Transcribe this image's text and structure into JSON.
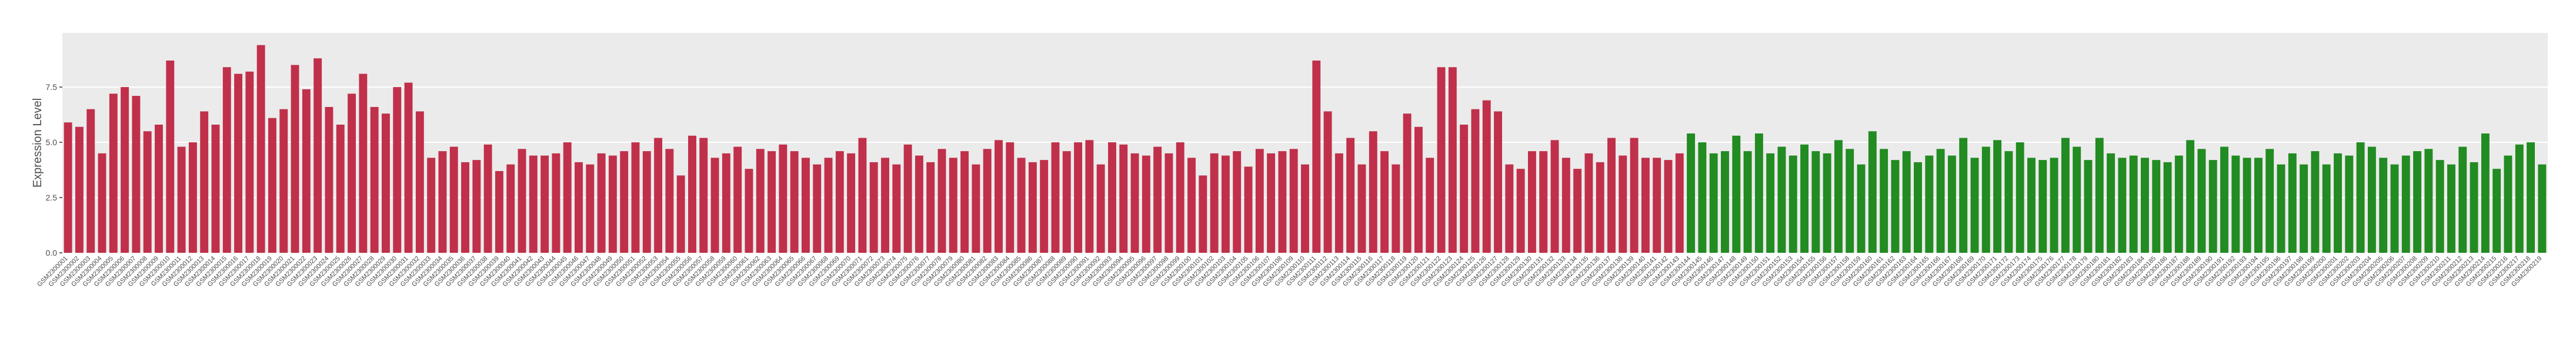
{
  "chart_data": {
    "type": "bar",
    "y_label": "Expression Level",
    "categories": [
      "GSM2300001",
      "GSM2300002",
      "GSM2300003",
      "GSM2300004",
      "GSM2300005",
      "GSM2300006",
      "GSM2300007",
      "GSM2300008",
      "GSM2300009",
      "GSM2300010",
      "GSM2300011",
      "GSM2300012",
      "GSM2300013",
      "GSM2300014",
      "GSM2300015",
      "GSM2300016",
      "GSM2300017",
      "GSM2300018",
      "GSM2300019",
      "GSM2300020",
      "GSM2300021",
      "GSM2300022",
      "GSM2300023",
      "GSM2300024",
      "GSM2300025",
      "GSM2300026",
      "GSM2300027",
      "GSM2300028",
      "GSM2300029",
      "GSM2300030",
      "GSM2300031",
      "GSM2300032",
      "GSM2300033",
      "GSM2300034",
      "GSM2300035",
      "GSM2300036",
      "GSM2300037",
      "GSM2300038",
      "GSM2300039",
      "GSM2300040",
      "GSM2300041",
      "GSM2300042",
      "GSM2300043",
      "GSM2300044",
      "GSM2300045",
      "GSM2300046",
      "GSM2300047",
      "GSM2300048",
      "GSM2300049",
      "GSM2300050",
      "GSM2300051",
      "GSM2300052",
      "GSM2300053",
      "GSM2300054",
      "GSM2300055",
      "GSM2300056",
      "GSM2300057",
      "GSM2300058",
      "GSM2300059",
      "GSM2300060",
      "GSM2300061",
      "GSM2300062",
      "GSM2300063",
      "GSM2300064",
      "GSM2300065",
      "GSM2300066",
      "GSM2300067",
      "GSM2300068",
      "GSM2300069",
      "GSM2300070",
      "GSM2300071",
      "GSM2300072",
      "GSM2300073",
      "GSM2300074",
      "GSM2300075",
      "GSM2300076",
      "GSM2300077",
      "GSM2300078",
      "GSM2300079",
      "GSM2300080",
      "GSM2300081",
      "GSM2300082",
      "GSM2300083",
      "GSM2300084",
      "GSM2300085",
      "GSM2300086",
      "GSM2300087",
      "GSM2300088",
      "GSM2300089",
      "GSM2300090",
      "GSM2300091",
      "GSM2300092",
      "GSM2300093",
      "GSM2300094",
      "GSM2300095",
      "GSM2300096",
      "GSM2300097",
      "GSM2300098",
      "GSM2300099",
      "GSM2300100",
      "GSM2300101",
      "GSM2300102",
      "GSM2300103",
      "GSM2300104",
      "GSM2300105",
      "GSM2300106",
      "GSM2300107",
      "GSM2300108",
      "GSM2300109",
      "GSM2300110",
      "GSM2300111",
      "GSM2300112",
      "GSM2300113",
      "GSM2300114",
      "GSM2300115",
      "GSM2300116",
      "GSM2300117",
      "GSM2300118",
      "GSM2300119",
      "GSM2300120",
      "GSM2300121",
      "GSM2300122",
      "GSM2300123",
      "GSM2300124",
      "GSM2300125",
      "GSM2300126",
      "GSM2300127",
      "GSM2300128",
      "GSM2300129",
      "GSM2300130",
      "GSM2300131",
      "GSM2300132",
      "GSM2300133",
      "GSM2300134",
      "GSM2300135",
      "GSM2300136",
      "GSM2300137",
      "GSM2300138",
      "GSM2300139",
      "GSM2300140",
      "GSM2300141",
      "GSM2300142",
      "GSM2300143",
      "GSM2300144",
      "GSM2300145",
      "GSM2300146",
      "GSM2300147",
      "GSM2300148",
      "GSM2300149",
      "GSM2300150",
      "GSM2300151",
      "GSM2300152",
      "GSM2300153",
      "GSM2300154",
      "GSM2300155",
      "GSM2300156",
      "GSM2300157",
      "GSM2300158",
      "GSM2300159",
      "GSM2300160",
      "GSM2300161",
      "GSM2300162",
      "GSM2300163",
      "GSM2300164",
      "GSM2300165",
      "GSM2300166",
      "GSM2300167",
      "GSM2300168",
      "GSM2300169",
      "GSM2300170",
      "GSM2300171",
      "GSM2300172",
      "GSM2300173",
      "GSM2300174",
      "GSM2300175",
      "GSM2300176",
      "GSM2300177",
      "GSM2300178",
      "GSM2300179",
      "GSM2300180",
      "GSM2300181",
      "GSM2300182",
      "GSM2300183",
      "GSM2300184",
      "GSM2300185",
      "GSM2300186",
      "GSM2300187",
      "GSM2300188",
      "GSM2300189",
      "GSM2300190",
      "GSM2300191",
      "GSM2300192",
      "GSM2300193",
      "GSM2300194",
      "GSM2300195",
      "GSM2300196",
      "GSM2300197",
      "GSM2300198",
      "GSM2300199",
      "GSM2300200",
      "GSM2300201",
      "GSM2300202",
      "GSM2300203",
      "GSM2300204",
      "GSM2300205",
      "GSM2300206",
      "GSM2300207",
      "GSM2300208",
      "GSM2300209",
      "GSM2300210",
      "GSM2300211",
      "GSM2300212",
      "GSM2300213",
      "GSM2300214",
      "GSM2300215",
      "GSM2300216",
      "GSM2300217",
      "GSM2300218",
      "GSM2300219"
    ],
    "values": [
      5.9,
      5.7,
      6.5,
      4.5,
      7.2,
      7.5,
      7.1,
      5.5,
      5.8,
      8.7,
      4.8,
      5.0,
      6.4,
      5.8,
      8.4,
      8.1,
      8.2,
      9.4,
      6.1,
      6.5,
      8.5,
      7.4,
      8.8,
      6.6,
      5.8,
      7.2,
      8.1,
      6.6,
      6.3,
      7.5,
      7.7,
      6.4,
      4.3,
      4.6,
      4.8,
      4.1,
      4.2,
      4.9,
      3.7,
      4.0,
      4.7,
      4.4,
      4.4,
      4.5,
      5.0,
      4.1,
      4.0,
      4.5,
      4.4,
      4.6,
      5.0,
      4.6,
      5.2,
      4.7,
      3.5,
      5.3,
      5.2,
      4.3,
      4.5,
      4.8,
      3.8,
      4.7,
      4.6,
      4.9,
      4.6,
      4.3,
      4.0,
      4.3,
      4.6,
      4.5,
      5.2,
      4.1,
      4.3,
      4.0,
      4.9,
      4.4,
      4.1,
      4.7,
      4.3,
      4.6,
      4.0,
      4.7,
      5.1,
      5.0,
      4.3,
      4.1,
      4.2,
      5.0,
      4.6,
      5.0,
      5.1,
      4.0,
      5.0,
      4.9,
      4.5,
      4.4,
      4.8,
      4.5,
      5.0,
      4.3,
      3.5,
      4.5,
      4.4,
      4.6,
      3.9,
      4.7,
      4.5,
      4.6,
      4.7,
      4.0,
      8.7,
      6.4,
      4.5,
      5.2,
      4.0,
      5.5,
      4.6,
      4.0,
      6.3,
      5.7,
      4.3,
      8.4,
      8.4,
      5.8,
      6.5,
      6.9,
      6.4,
      4.0,
      3.8,
      4.6,
      4.6,
      5.1,
      4.3,
      3.8,
      4.5,
      4.1,
      5.2,
      4.4,
      5.2,
      4.3,
      4.3,
      4.2,
      4.5,
      5.4,
      5.0,
      4.5,
      4.6,
      5.3,
      4.6,
      5.4,
      4.5,
      4.8,
      4.4,
      4.9,
      4.6,
      4.5,
      5.1,
      4.7,
      4.0,
      5.5,
      4.7,
      4.2,
      4.6,
      4.1,
      4.4,
      4.7,
      4.4,
      5.2,
      4.3,
      4.8,
      5.1,
      4.6,
      5.0,
      4.3,
      4.2,
      4.3,
      5.2,
      4.8,
      4.2,
      5.2,
      4.5,
      4.3,
      4.4,
      4.3,
      4.2,
      4.1,
      4.4,
      5.1,
      4.7,
      4.2,
      4.8,
      4.4,
      4.3,
      4.3,
      4.7,
      4.0,
      4.5,
      4.0,
      4.6,
      4.0,
      4.5,
      4.4,
      5.0,
      4.8,
      4.3,
      4.0,
      4.4,
      4.6,
      4.7,
      4.2,
      4.0,
      4.8,
      4.1,
      5.4,
      3.8,
      4.4,
      4.9,
      5.0,
      4.0
    ],
    "colors": [
      "#c0304a",
      "#c0304a",
      "#c0304a",
      "#c0304a",
      "#c0304a",
      "#c0304a",
      "#c0304a",
      "#c0304a",
      "#c0304a",
      "#c0304a",
      "#c0304a",
      "#c0304a",
      "#c0304a",
      "#c0304a",
      "#c0304a",
      "#c0304a",
      "#c0304a",
      "#c0304a",
      "#c0304a",
      "#c0304a",
      "#c0304a",
      "#c0304a",
      "#c0304a",
      "#c0304a",
      "#c0304a",
      "#c0304a",
      "#c0304a",
      "#c0304a",
      "#c0304a",
      "#c0304a",
      "#c0304a",
      "#c0304a",
      "#c0304a",
      "#c0304a",
      "#c0304a",
      "#c0304a",
      "#c0304a",
      "#c0304a",
      "#c0304a",
      "#c0304a",
      "#c0304a",
      "#c0304a",
      "#c0304a",
      "#c0304a",
      "#c0304a",
      "#c0304a",
      "#c0304a",
      "#c0304a",
      "#c0304a",
      "#c0304a",
      "#c0304a",
      "#c0304a",
      "#c0304a",
      "#c0304a",
      "#c0304a",
      "#c0304a",
      "#c0304a",
      "#c0304a",
      "#c0304a",
      "#c0304a",
      "#c0304a",
      "#c0304a",
      "#c0304a",
      "#c0304a",
      "#c0304a",
      "#c0304a",
      "#c0304a",
      "#c0304a",
      "#c0304a",
      "#c0304a",
      "#c0304a",
      "#c0304a",
      "#c0304a",
      "#c0304a",
      "#c0304a",
      "#c0304a",
      "#c0304a",
      "#c0304a",
      "#c0304a",
      "#c0304a",
      "#c0304a",
      "#c0304a",
      "#c0304a",
      "#c0304a",
      "#c0304a",
      "#c0304a",
      "#c0304a",
      "#c0304a",
      "#c0304a",
      "#c0304a",
      "#c0304a",
      "#c0304a",
      "#c0304a",
      "#c0304a",
      "#c0304a",
      "#c0304a",
      "#c0304a",
      "#c0304a",
      "#c0304a",
      "#c0304a",
      "#c0304a",
      "#c0304a",
      "#c0304a",
      "#c0304a",
      "#c0304a",
      "#c0304a",
      "#c0304a",
      "#c0304a",
      "#c0304a",
      "#c0304a",
      "#c0304a",
      "#c0304a",
      "#c0304a",
      "#c0304a",
      "#c0304a",
      "#c0304a",
      "#c0304a",
      "#c0304a",
      "#c0304a",
      "#c0304a",
      "#c0304a",
      "#c0304a",
      "#c0304a",
      "#c0304a",
      "#c0304a",
      "#c0304a",
      "#c0304a",
      "#c0304a",
      "#c0304a",
      "#c0304a",
      "#c0304a",
      "#c0304a",
      "#c0304a",
      "#c0304a",
      "#c0304a",
      "#c0304a",
      "#c0304a",
      "#c0304a",
      "#c0304a",
      "#c0304a",
      "#c0304a",
      "#c0304a",
      "#c0304a",
      "#228b22",
      "#228b22",
      "#228b22",
      "#228b22",
      "#228b22",
      "#228b22",
      "#228b22",
      "#228b22",
      "#228b22",
      "#228b22",
      "#228b22",
      "#228b22",
      "#228b22",
      "#228b22",
      "#228b22",
      "#228b22",
      "#228b22",
      "#228b22",
      "#228b22",
      "#228b22",
      "#228b22",
      "#228b22",
      "#228b22",
      "#228b22",
      "#228b22",
      "#228b22",
      "#228b22",
      "#228b22",
      "#228b22",
      "#228b22",
      "#228b22",
      "#228b22",
      "#228b22",
      "#228b22",
      "#228b22",
      "#228b22",
      "#228b22",
      "#228b22",
      "#228b22",
      "#228b22",
      "#228b22",
      "#228b22",
      "#228b22",
      "#228b22",
      "#228b22",
      "#228b22",
      "#228b22",
      "#228b22",
      "#228b22",
      "#228b22",
      "#228b22",
      "#228b22",
      "#228b22",
      "#228b22",
      "#228b22",
      "#228b22",
      "#228b22",
      "#228b22",
      "#228b22",
      "#228b22",
      "#228b22",
      "#228b22",
      "#228b22",
      "#228b22",
      "#228b22",
      "#228b22",
      "#228b22",
      "#228b22",
      "#228b22",
      "#228b22",
      "#228b22",
      "#228b22",
      "#228b22",
      "#228b22",
      "#228b22",
      "#228b22"
    ],
    "ylim": [
      0,
      9.95
    ],
    "yticks": [
      {
        "value": 0,
        "label": "0.0"
      },
      {
        "value": 2.5,
        "label": "2.5"
      },
      {
        "value": 5,
        "label": "5.0"
      },
      {
        "value": 7.5,
        "label": "7.5"
      }
    ],
    "grid": true
  }
}
